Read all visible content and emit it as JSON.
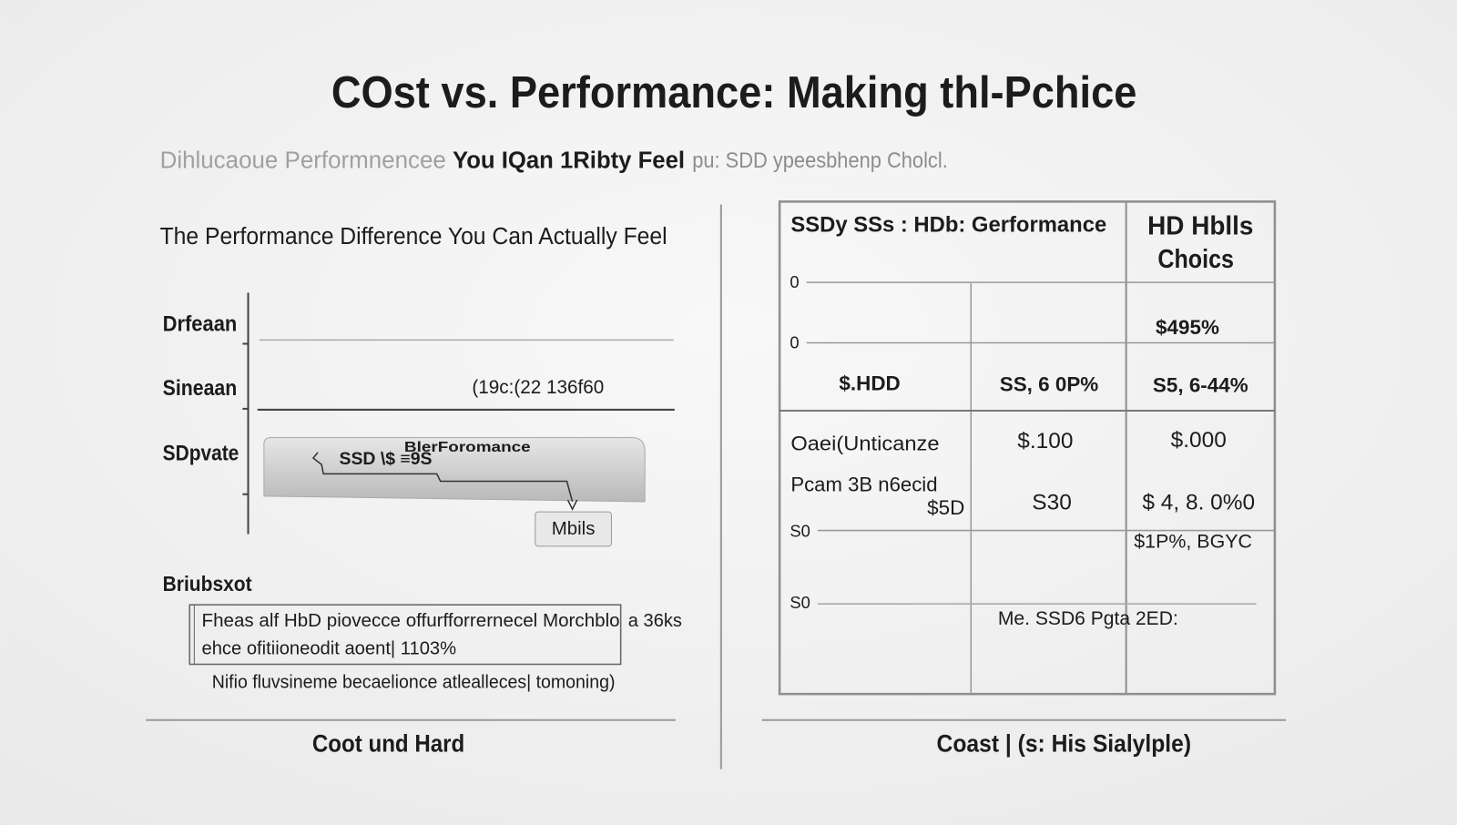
{
  "header": {
    "title": "COst vs. Performance: Making thl-Pchice",
    "subtitle": [
      "Dihlucaoue Performnencee",
      "You IQan 1Ribty Feel",
      "pu: SDD ypeesbhenp Cholcl."
    ]
  },
  "left": {
    "heading": "The Performance Difference You Can Actually Feel",
    "rows": [
      "Drfeaan",
      "Sineaan",
      "SDpvate"
    ],
    "annotation": "(19c:(22 136f60",
    "bar_label": "SSD \\$ ≡9S",
    "bar_caption": "BlerForomance",
    "callout": "Mbils",
    "section": "Briubsxot",
    "box_lines": [
      "Fheas alf HbD piovecce offurfforrernecel Morchblo",
      "ehce ofitiioneodit aoent| 1103%"
    ],
    "box_side": "a 36ks",
    "note": "Nifio fluvsineme becaelionce atlealleces| tomoning)",
    "footer": "Coot und Hard"
  },
  "right": {
    "header": [
      "SSDy SSs : HDb: Gerformance",
      "HD Hblls",
      "Choics"
    ],
    "cells": [
      "0",
      "0",
      "$495%",
      "$.HDD",
      "SS, 6 0P%",
      "S5, 6-44%",
      "Oaei(Unticanze",
      "$.100",
      "$.000",
      "Pcam 3B n6ecid",
      "$5D",
      "S30",
      "$ 4, 8. 0%0",
      "S0",
      "$1P%, BGYC",
      "S0",
      "Me. SSD6 Pgta 2ED:"
    ],
    "footer": "Coast | (s: His Sialylple)"
  }
}
